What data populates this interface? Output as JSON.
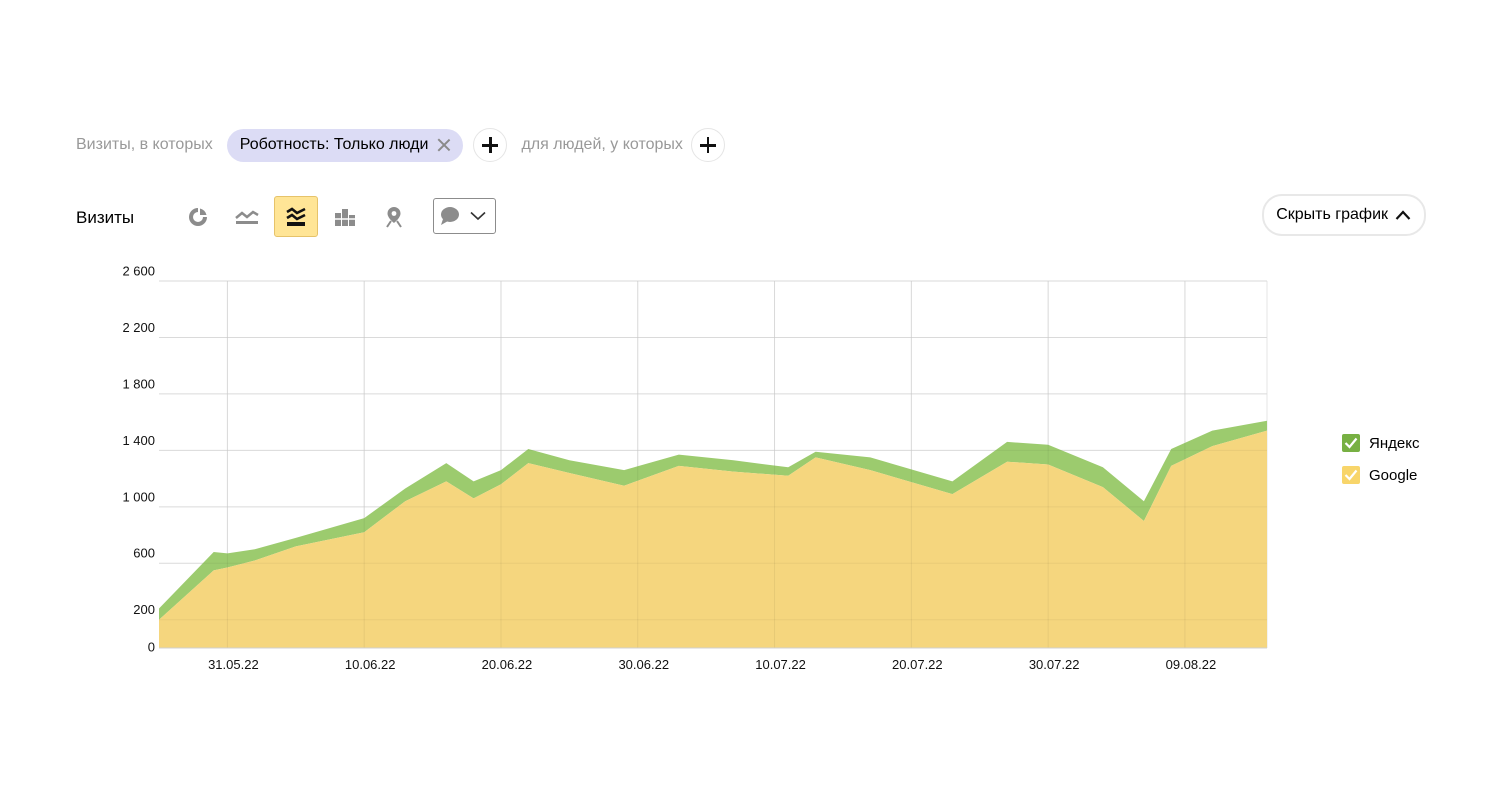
{
  "filters": {
    "prefix": "Визиты, в которых",
    "chip_label": "Роботность: Только люди",
    "people_label": "для людей, у которых"
  },
  "toolbar": {
    "metric_title": "Визиты",
    "view_buttons": [
      {
        "icon": "pie-chart-icon",
        "active": false
      },
      {
        "icon": "line-chart-icon",
        "active": false
      },
      {
        "icon": "stacked-area-icon",
        "active": true
      },
      {
        "icon": "stacked-bar-icon",
        "active": false
      },
      {
        "icon": "map-pin-icon",
        "active": false
      }
    ],
    "annotations_icon": "speech-bubble-icon",
    "hide_chart_label": "Скрыть график"
  },
  "colors": {
    "yandex": "#9ccb6e",
    "yandex_legend": "#77b043",
    "google": "#f5d67e",
    "google_legend": "#f8d56a",
    "grid": "#e6e6e6",
    "active_button": "#ffe596"
  },
  "chart_data": {
    "type": "area",
    "stacked": true,
    "ylim": [
      0,
      2600
    ],
    "yticks": [
      0,
      200,
      600,
      1000,
      1400,
      1800,
      2200,
      2600
    ],
    "ytick_labels": [
      "0",
      "200",
      "600",
      "1 000",
      "1 400",
      "1 800",
      "2 200",
      "2 600"
    ],
    "xlim": [
      "2022-05-26",
      "2022-08-15"
    ],
    "xticks": [
      "2022-05-31",
      "2022-06-10",
      "2022-06-20",
      "2022-06-30",
      "2022-07-10",
      "2022-07-20",
      "2022-07-30",
      "2022-08-09"
    ],
    "xtick_labels": [
      "31.05.22",
      "10.06.22",
      "20.06.22",
      "30.06.22",
      "10.07.22",
      "20.07.22",
      "30.07.22",
      "09.08.22"
    ],
    "grid": true,
    "legend_position": "right",
    "x": [
      "2022-05-26",
      "2022-05-30",
      "2022-05-31",
      "2022-06-02",
      "2022-06-05",
      "2022-06-10",
      "2022-06-13",
      "2022-06-16",
      "2022-06-18",
      "2022-06-20",
      "2022-06-22",
      "2022-06-25",
      "2022-06-29",
      "2022-07-03",
      "2022-07-07",
      "2022-07-11",
      "2022-07-13",
      "2022-07-17",
      "2022-07-23",
      "2022-07-27",
      "2022-07-30",
      "2022-08-03",
      "2022-08-06",
      "2022-08-08",
      "2022-08-11",
      "2022-08-15"
    ],
    "series": [
      {
        "name": "Google",
        "color": "#f5d67e",
        "values": [
          200,
          550,
          570,
          620,
          720,
          820,
          1040,
          1180,
          1060,
          1160,
          1310,
          1240,
          1150,
          1290,
          1250,
          1220,
          1350,
          1260,
          1090,
          1320,
          1300,
          1140,
          900,
          1290,
          1430,
          1540
        ]
      },
      {
        "name": "Яндекс",
        "color": "#9ccb6e",
        "values": [
          80,
          130,
          100,
          80,
          60,
          100,
          90,
          130,
          120,
          100,
          100,
          90,
          110,
          80,
          80,
          60,
          40,
          90,
          90,
          140,
          140,
          140,
          140,
          120,
          110,
          70
        ]
      }
    ]
  }
}
